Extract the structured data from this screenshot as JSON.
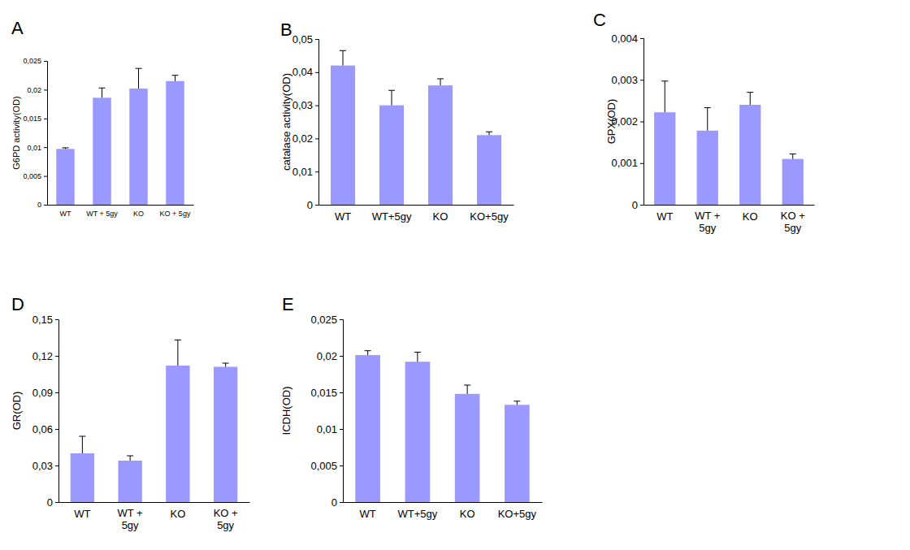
{
  "chart_data": [
    {
      "type": "bar",
      "title": "A",
      "y_label": "G6PD activity(OD)",
      "categories": [
        "WT",
        "WT + 5gy",
        "KO",
        "KO + 5gy"
      ],
      "values": [
        0.0097,
        0.0186,
        0.0202,
        0.0215
      ],
      "errors": [
        0.0002,
        0.0017,
        0.0035,
        0.001
      ],
      "color": "#9999ff",
      "ylim": [
        0,
        0.025
      ],
      "yticks": [
        0,
        {
          "value": 0.005,
          "label": "0,005"
        },
        {
          "value": 0.01,
          "label": "0,01"
        },
        {
          "value": 0.015,
          "label": "0,015"
        },
        {
          "value": 0.02,
          "label": "0,02"
        },
        {
          "value": 0.025,
          "label": "0,025"
        }
      ]
    },
    {
      "type": "bar",
      "title": "B",
      "y_label": "catalase activity(OD)",
      "categories": [
        "WT",
        "WT+5gy",
        "KO",
        "KO+5gy"
      ],
      "values": [
        0.042,
        0.03,
        0.036,
        0.021
      ],
      "errors": [
        0.0045,
        0.0045,
        0.002,
        0.001
      ],
      "color": "#9999ff",
      "ylim": [
        0,
        0.05
      ],
      "yticks": [
        0,
        {
          "value": 0.01,
          "label": "0,01"
        },
        {
          "value": 0.02,
          "label": "0,02"
        },
        {
          "value": 0.03,
          "label": "0,03"
        },
        {
          "value": 0.04,
          "label": "0,04"
        },
        {
          "value": 0.05,
          "label": "0,05"
        }
      ]
    },
    {
      "type": "bar",
      "title": "C",
      "y_label": "GPX(OD)",
      "categories": [
        "WT",
        "WT + 5gy",
        "KO",
        "KO + 5gy"
      ],
      "values": [
        0.00222,
        0.00178,
        0.0024,
        0.0011
      ],
      "errors": [
        0.00075,
        0.00055,
        0.0003,
        0.00012
      ],
      "color": "#9999ff",
      "ylim": [
        0,
        0.004
      ],
      "yticks": [
        0,
        {
          "value": 0.001,
          "label": "0,001"
        },
        {
          "value": 0.002,
          "label": "0,002"
        },
        {
          "value": 0.003,
          "label": "0,003"
        },
        {
          "value": 0.004,
          "label": "0,004"
        }
      ]
    },
    {
      "type": "bar",
      "title": "D",
      "y_label": "GR(OD)",
      "categories": [
        "WT",
        "WT + 5gy",
        "KO",
        "KO + 5gy"
      ],
      "values": [
        0.04,
        0.034,
        0.112,
        0.111
      ],
      "errors": [
        0.014,
        0.004,
        0.021,
        0.003
      ],
      "color": "#9999ff",
      "ylim": [
        0,
        0.15
      ],
      "yticks": [
        0,
        {
          "value": 0.03,
          "label": "0,03"
        },
        {
          "value": 0.06,
          "label": "0,06"
        },
        {
          "value": 0.09,
          "label": "0,09"
        },
        {
          "value": 0.12,
          "label": "0,12"
        },
        {
          "value": 0.15,
          "label": "0,15"
        }
      ]
    },
    {
      "type": "bar",
      "title": "E",
      "y_label": "ICDH(OD)",
      "categories": [
        "WT",
        "WT+5gy",
        "KO",
        "KO+5gy"
      ],
      "values": [
        0.0201,
        0.0192,
        0.0148,
        0.0133
      ],
      "errors": [
        0.0006,
        0.0013,
        0.0012,
        0.0005
      ],
      "color": "#9999ff",
      "ylim": [
        0,
        0.025
      ],
      "yticks": [
        0,
        {
          "value": 0.005,
          "label": "0,005"
        },
        {
          "value": 0.01,
          "label": "0,01"
        },
        {
          "value": 0.015,
          "label": "0,015"
        },
        {
          "value": 0.02,
          "label": "0,02"
        },
        {
          "value": 0.025,
          "label": "0,025"
        }
      ]
    }
  ]
}
